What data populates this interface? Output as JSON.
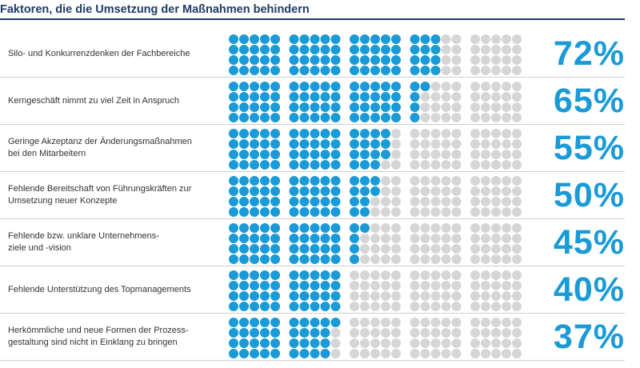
{
  "title": "Faktoren, die die Umsetzung der Maßnahmen behindern",
  "colors": {
    "filled": "#1a9ad6",
    "empty": "#d6d6d6",
    "title": "#1f3b66",
    "percent": "#1a9ad6"
  },
  "chart_data": {
    "type": "bar",
    "title": "Faktoren, die die Umsetzung der Maßnahmen behindern",
    "xlabel": "",
    "ylabel": "",
    "unit": "%",
    "ylim": [
      0,
      100
    ],
    "categories": [
      "Silo- und Konkurrenzdenken der Fachbereiche",
      "Kerngeschäft nimmt zu viel Zeit in Anspruch",
      "Geringe Akzeptanz der Änderungsmaßnahmen\nbei den Mitarbeitern",
      "Fehlende Bereitschaft von Führungskräften zur\nUmsetzung neuer Konzepte",
      "Fehlende bzw. unklare Unternehmens-\nziele und -vision",
      "Fehlende Unterstützung des Topmanagements",
      "Herkömmliche und neue Formen der Prozess-\ngestaltung sind nicht in Einklang zu bringen"
    ],
    "values": [
      72,
      65,
      55,
      50,
      45,
      40,
      37
    ],
    "value_labels": [
      "72%",
      "65%",
      "55%",
      "50%",
      "45%",
      "40%",
      "37%"
    ]
  }
}
